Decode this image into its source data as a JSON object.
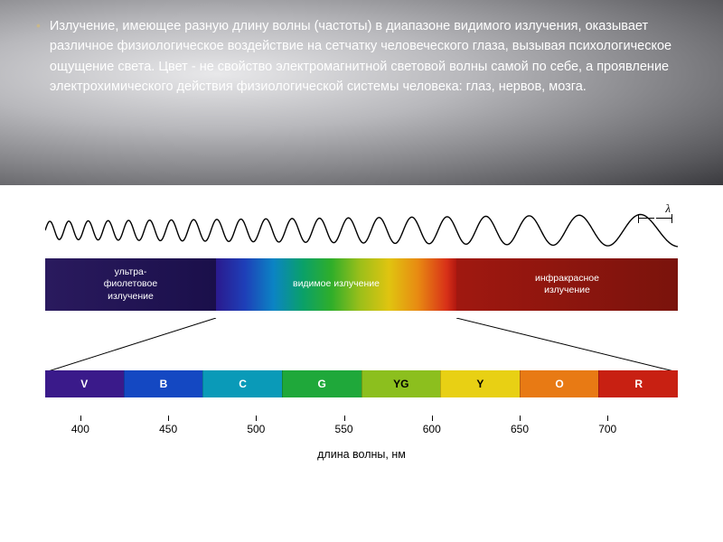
{
  "header": {
    "paragraph": "Излучение, имеющее разную длину волны (частоты) в диапазоне  видимого излучения, оказывает различное физиологическое воздействие на сетчатку человеческого глаза, вызывая психологическое ощущение света. Цвет - не свойство электромагнитной световой волны самой по себе, а проявление электрохимического действия физиологической системы человека: глаз, нервов, мозга."
  },
  "lambda_symbol": "λ",
  "wave": {
    "n_cycles_start": 34,
    "amp_start": 10,
    "amp_end": 18,
    "freq_ratio": 0.22
  },
  "spectrum_labels": {
    "uv": "ультра-\nфиолетовое\nизлучение",
    "visible": "видимое излучение",
    "ir": "инфракрасное\nизлучение"
  },
  "trapezoid": {
    "top_left_pct": 27,
    "top_right_pct": 65
  },
  "color_boxes": [
    {
      "code": "V",
      "bg": "#3a1a8a",
      "fg": "#ffffff"
    },
    {
      "code": "B",
      "bg": "#1448c2",
      "fg": "#ffffff"
    },
    {
      "code": "C",
      "bg": "#0a9ab8",
      "fg": "#ffffff"
    },
    {
      "code": "G",
      "bg": "#1fa83a",
      "fg": "#ffffff"
    },
    {
      "code": "YG",
      "bg": "#8cbf1e",
      "fg": "#000000"
    },
    {
      "code": "Y",
      "bg": "#e8d014",
      "fg": "#000000"
    },
    {
      "code": "O",
      "bg": "#e87a14",
      "fg": "#ffffff"
    },
    {
      "code": "R",
      "bg": "#c82012",
      "fg": "#ffffff"
    }
  ],
  "ticks": [
    400,
    450,
    500,
    550,
    600,
    650,
    700
  ],
  "axis": {
    "min": 380,
    "max": 740,
    "label": "длина волны, нм"
  }
}
